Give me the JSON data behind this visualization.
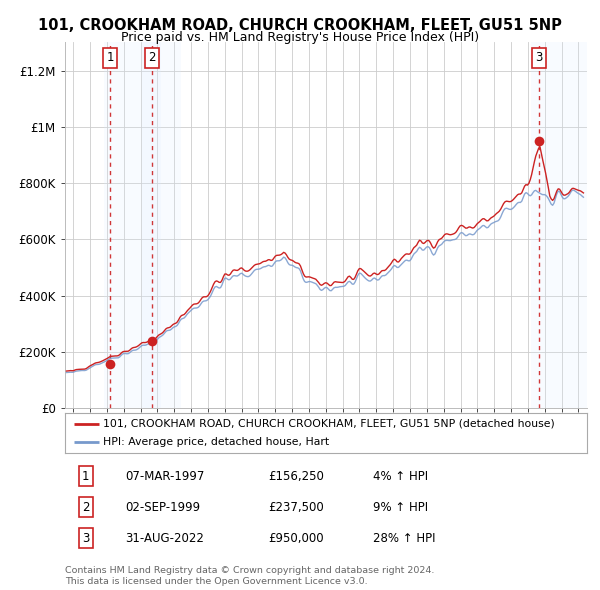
{
  "title": "101, CROOKHAM ROAD, CHURCH CROOKHAM, FLEET, GU51 5NP",
  "subtitle": "Price paid vs. HM Land Registry's House Price Index (HPI)",
  "xlim_start": 1994.5,
  "xlim_end": 2025.5,
  "ylim_min": 0,
  "ylim_max": 1300000,
  "yticks": [
    0,
    200000,
    400000,
    600000,
    800000,
    1000000,
    1200000
  ],
  "ytick_labels": [
    "£0",
    "£200K",
    "£400K",
    "£600K",
    "£800K",
    "£1M",
    "£1.2M"
  ],
  "xticks": [
    1995,
    1996,
    1997,
    1998,
    1999,
    2000,
    2001,
    2002,
    2003,
    2004,
    2005,
    2006,
    2007,
    2008,
    2009,
    2010,
    2011,
    2012,
    2013,
    2014,
    2015,
    2016,
    2017,
    2018,
    2019,
    2020,
    2021,
    2022,
    2023,
    2024,
    2025
  ],
  "sale_points": [
    {
      "year": 1997.18,
      "price": 156250,
      "label": "1"
    },
    {
      "year": 1999.67,
      "price": 237500,
      "label": "2"
    },
    {
      "year": 2022.66,
      "price": 950000,
      "label": "3"
    }
  ],
  "legend_line1": "101, CROOKHAM ROAD, CHURCH CROOKHAM, FLEET, GU51 5NP (detached house)",
  "legend_line2": "HPI: Average price, detached house, Hart",
  "table_entries": [
    {
      "num": "1",
      "date": "07-MAR-1997",
      "price": "£156,250",
      "change": "4% ↑ HPI"
    },
    {
      "num": "2",
      "date": "02-SEP-1999",
      "price": "£237,500",
      "change": "9% ↑ HPI"
    },
    {
      "num": "3",
      "date": "31-AUG-2022",
      "price": "£950,000",
      "change": "28% ↑ HPI"
    }
  ],
  "footer_line1": "Contains HM Land Registry data © Crown copyright and database right 2024.",
  "footer_line2": "This data is licensed under the Open Government Licence v3.0.",
  "hpi_color": "#7799cc",
  "price_color": "#cc2222",
  "shade_color": "#ddeeff",
  "dashed_color": "#cc2222",
  "background_color": "#ffffff"
}
